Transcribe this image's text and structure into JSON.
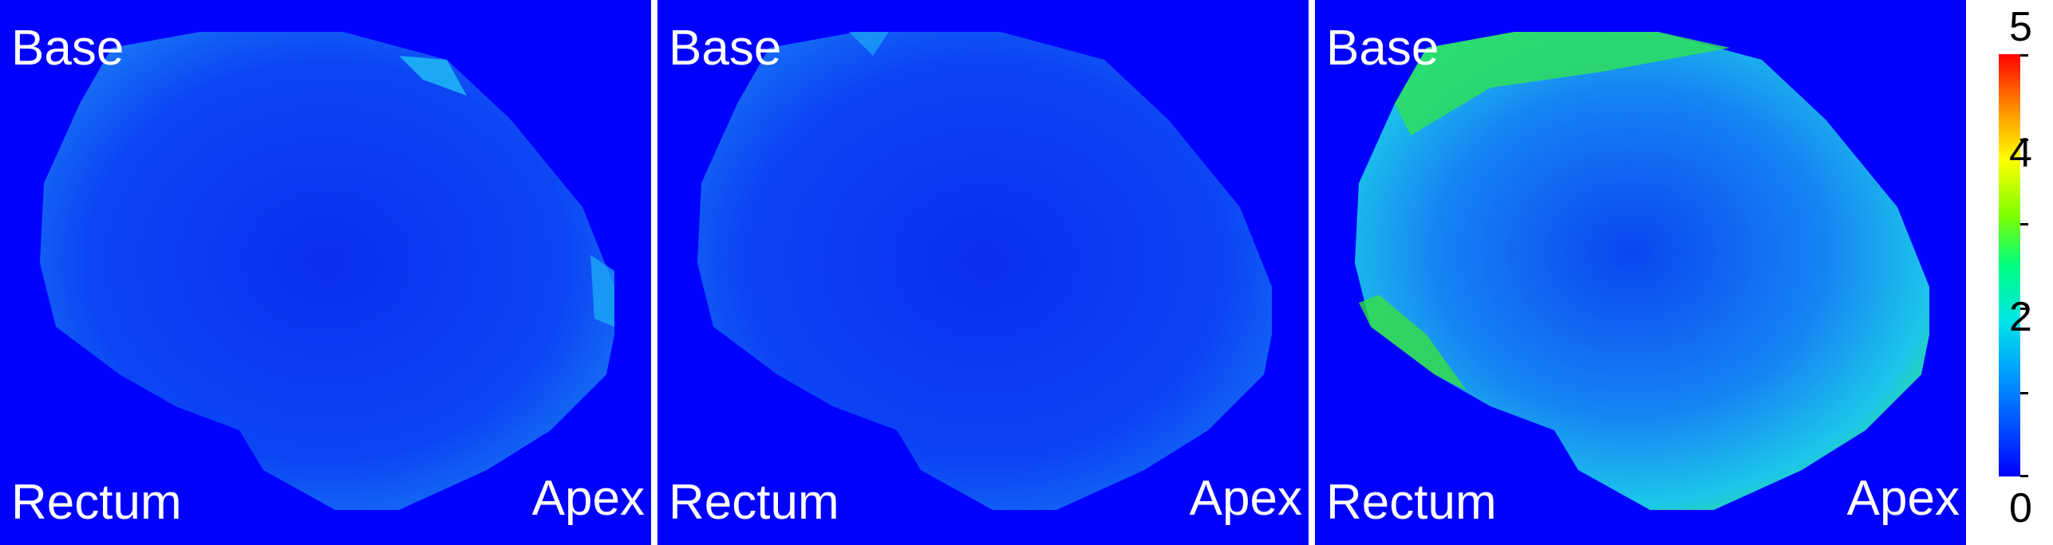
{
  "panels": [
    {
      "base_label": "Base",
      "rectum_label": "Rectum",
      "apex_label": "Apex",
      "variant": "low"
    },
    {
      "base_label": "Base",
      "rectum_label": "Rectum",
      "apex_label": "Apex",
      "variant": "low"
    },
    {
      "base_label": "Base",
      "rectum_label": "Rectum",
      "apex_label": "Apex",
      "variant": "high"
    }
  ],
  "colorbar": {
    "min": 0,
    "max": 5,
    "tick_labels": [
      "5",
      "4",
      "2",
      "0"
    ],
    "colors": [
      "#0000ff",
      "#00a0ff",
      "#00e6e6",
      "#00ff80",
      "#80ff00",
      "#ffff00",
      "#ff9000",
      "#ff0000"
    ]
  },
  "colors": {
    "background": "#0000ff",
    "low_fill": "#0a3cf0",
    "high_edge": "#28e25a",
    "high_mid": "#1aa8f0"
  }
}
